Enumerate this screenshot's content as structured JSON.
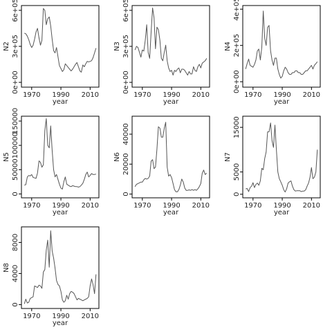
{
  "colors": {
    "line": "#555555",
    "frame": "#000000"
  },
  "chart_data": [
    {
      "type": "line",
      "xlabel": "year",
      "ylabel": "N2",
      "xlim": [
        1963,
        2016
      ],
      "ylim": [
        -40000,
        640000
      ],
      "xticks": [
        1970,
        1990,
        2010
      ],
      "xtick_labels": [
        "1970",
        "1990",
        "2010"
      ],
      "yticks": [
        0,
        300000,
        600000
      ],
      "ytick_labels": [
        "0e+00",
        "3e+05",
        "6e+05"
      ],
      "x": [
        1965,
        1966,
        1967,
        1968,
        1969,
        1970,
        1971,
        1972,
        1973,
        1974,
        1975,
        1976,
        1977,
        1978,
        1979,
        1980,
        1981,
        1982,
        1983,
        1984,
        1985,
        1986,
        1987,
        1988,
        1989,
        1990,
        1991,
        1992,
        1993,
        1994,
        1995,
        1996,
        1997,
        1998,
        1999,
        2000,
        2001,
        2002,
        2003,
        2004,
        2005,
        2006,
        2007,
        2008,
        2009,
        2010,
        2011,
        2012,
        2013,
        2014
      ],
      "y": [
        410000,
        405000,
        385000,
        355000,
        315000,
        290000,
        310000,
        360000,
        420000,
        450000,
        370000,
        310000,
        350000,
        615000,
        600000,
        480000,
        530000,
        545000,
        470000,
        360000,
        265000,
        245000,
        290000,
        215000,
        140000,
        115000,
        90000,
        105000,
        155000,
        140000,
        125000,
        110000,
        95000,
        110000,
        130000,
        150000,
        165000,
        130000,
        95000,
        85000,
        145000,
        130000,
        155000,
        175000,
        170000,
        175000,
        180000,
        205000,
        245000,
        285000
      ]
    },
    {
      "type": "line",
      "xlabel": "year",
      "ylabel": "N3",
      "xlim": [
        1963,
        2016
      ],
      "ylim": [
        -40000,
        640000
      ],
      "xticks": [
        1970,
        1990,
        2010
      ],
      "xtick_labels": [
        "1970",
        "1990",
        "2010"
      ],
      "yticks": [
        0,
        300000,
        600000
      ],
      "ytick_labels": [
        "0e+00",
        "3e+05",
        "6e+05"
      ],
      "x": [
        1965,
        1966,
        1967,
        1968,
        1969,
        1970,
        1971,
        1972,
        1973,
        1974,
        1975,
        1976,
        1977,
        1978,
        1979,
        1980,
        1981,
        1982,
        1983,
        1984,
        1985,
        1986,
        1987,
        1988,
        1989,
        1990,
        1991,
        1992,
        1993,
        1994,
        1995,
        1996,
        1997,
        1998,
        1999,
        2000,
        2001,
        2002,
        2003,
        2004,
        2005,
        2006,
        2007,
        2008,
        2009,
        2010,
        2011,
        2012,
        2013,
        2014
      ],
      "y": [
        270000,
        300000,
        290000,
        250000,
        210000,
        270000,
        260000,
        350000,
        480000,
        250000,
        200000,
        420000,
        620000,
        540000,
        280000,
        460000,
        440000,
        350000,
        200000,
        180000,
        250000,
        310000,
        180000,
        120000,
        90000,
        100000,
        60000,
        100000,
        90000,
        110000,
        120000,
        80000,
        110000,
        110000,
        100000,
        80000,
        60000,
        90000,
        70000,
        70000,
        130000,
        100000,
        90000,
        130000,
        150000,
        120000,
        160000,
        170000,
        180000,
        200000
      ]
    },
    {
      "type": "line",
      "xlabel": "year",
      "ylabel": "N4",
      "xlim": [
        1963,
        2016
      ],
      "ylim": [
        -30000,
        420000
      ],
      "xticks": [
        1970,
        1990,
        2010
      ],
      "xtick_labels": [
        "1970",
        "1990",
        "2010"
      ],
      "yticks": [
        0,
        200000,
        400000
      ],
      "ytick_labels": [
        "0e+00",
        "2e+05",
        "4e+05"
      ],
      "x": [
        1965,
        1966,
        1967,
        1968,
        1969,
        1970,
        1971,
        1972,
        1973,
        1974,
        1975,
        1976,
        1977,
        1978,
        1979,
        1980,
        1981,
        1982,
        1983,
        1984,
        1985,
        1986,
        1987,
        1988,
        1989,
        1990,
        1991,
        1992,
        1993,
        1994,
        1995,
        1996,
        1997,
        1998,
        1999,
        2000,
        2001,
        2002,
        2003,
        2004,
        2005,
        2006,
        2007,
        2008,
        2009,
        2010,
        2011,
        2012,
        2013,
        2014
      ],
      "y": [
        70000,
        100000,
        125000,
        90000,
        85000,
        80000,
        95000,
        120000,
        170000,
        180000,
        120000,
        190000,
        390000,
        240000,
        200000,
        300000,
        310000,
        170000,
        120000,
        90000,
        130000,
        130000,
        70000,
        40000,
        20000,
        30000,
        60000,
        80000,
        70000,
        50000,
        40000,
        40000,
        50000,
        50000,
        60000,
        60000,
        50000,
        50000,
        40000,
        40000,
        50000,
        60000,
        60000,
        70000,
        80000,
        90000,
        70000,
        90000,
        100000,
        110000
      ]
    },
    {
      "type": "line",
      "xlabel": "year",
      "ylabel": "N5",
      "xlim": [
        1963,
        2016
      ],
      "ylim": [
        -8000,
        160000
      ],
      "xticks": [
        1970,
        1990,
        2010
      ],
      "xtick_labels": [
        "1970",
        "1990",
        "2010"
      ],
      "yticks": [
        0,
        50000,
        100000,
        150000
      ],
      "ytick_labels": [
        "0",
        "50000",
        "100000",
        "150000"
      ],
      "x": [
        1965,
        1966,
        1967,
        1968,
        1969,
        1970,
        1971,
        1972,
        1973,
        1974,
        1975,
        1976,
        1977,
        1978,
        1979,
        1980,
        1981,
        1982,
        1983,
        1984,
        1985,
        1986,
        1987,
        1988,
        1989,
        1990,
        1991,
        1992,
        1993,
        1994,
        1995,
        1996,
        1997,
        1998,
        1999,
        2000,
        2001,
        2002,
        2003,
        2004,
        2005,
        2006,
        2007,
        2008,
        2009,
        2010,
        2011,
        2012,
        2013,
        2014
      ],
      "y": [
        18000,
        19000,
        35000,
        38000,
        37000,
        40000,
        34000,
        33000,
        32000,
        43000,
        68000,
        65000,
        55000,
        60000,
        130000,
        155000,
        100000,
        95000,
        140000,
        90000,
        50000,
        35000,
        40000,
        30000,
        20000,
        12000,
        10000,
        25000,
        35000,
        20000,
        18000,
        16000,
        15000,
        17000,
        16000,
        15000,
        15000,
        14000,
        15000,
        18000,
        22000,
        30000,
        40000,
        45000,
        35000,
        38000,
        42000,
        40000,
        40000,
        41000
      ]
    },
    {
      "type": "line",
      "xlabel": "year",
      "ylabel": "N6",
      "xlim": [
        1963,
        2016
      ],
      "ylim": [
        -2500,
        52000
      ],
      "xticks": [
        1970,
        1990,
        2010
      ],
      "xtick_labels": [
        "1970",
        "1990",
        "2010"
      ],
      "yticks": [
        0,
        20000,
        40000
      ],
      "ytick_labels": [
        "0",
        "20000",
        "40000"
      ],
      "x": [
        1965,
        1966,
        1967,
        1968,
        1969,
        1970,
        1971,
        1972,
        1973,
        1974,
        1975,
        1976,
        1977,
        1978,
        1979,
        1980,
        1981,
        1982,
        1983,
        1984,
        1985,
        1986,
        1987,
        1988,
        1989,
        1990,
        1991,
        1992,
        1993,
        1994,
        1995,
        1996,
        1997,
        1998,
        1999,
        2000,
        2001,
        2002,
        2003,
        2004,
        2005,
        2006,
        2007,
        2008,
        2009,
        2010,
        2011,
        2012,
        2013,
        2014
      ],
      "y": [
        5000,
        6500,
        7000,
        7500,
        8000,
        8000,
        9500,
        10500,
        10000,
        10500,
        12000,
        22000,
        23000,
        17000,
        18000,
        30000,
        45000,
        44000,
        38000,
        38000,
        44000,
        48000,
        18000,
        12000,
        13000,
        11000,
        7000,
        3000,
        1500,
        1500,
        3000,
        6000,
        10000,
        8000,
        4000,
        2500,
        2500,
        2800,
        2500,
        3000,
        2500,
        3000,
        2500,
        3500,
        5000,
        7000,
        14000,
        16000,
        13000,
        14000
      ]
    },
    {
      "type": "line",
      "xlabel": "year",
      "ylabel": "N7",
      "xlim": [
        1963,
        2016
      ],
      "ylim": [
        -800,
        17500
      ],
      "xticks": [
        1970,
        1990,
        2010
      ],
      "xtick_labels": [
        "1970",
        "1990",
        "2010"
      ],
      "yticks": [
        0,
        5000,
        15000
      ],
      "ytick_labels": [
        "0",
        "5000",
        "15000"
      ],
      "x": [
        1965,
        1966,
        1967,
        1968,
        1969,
        1970,
        1971,
        1972,
        1973,
        1974,
        1975,
        1976,
        1977,
        1978,
        1979,
        1980,
        1981,
        1982,
        1983,
        1984,
        1985,
        1986,
        1987,
        1988,
        1989,
        1990,
        1991,
        1992,
        1993,
        1994,
        1995,
        1996,
        1997,
        1998,
        1999,
        2000,
        2001,
        2002,
        2003,
        2004,
        2005,
        2006,
        2007,
        2008,
        2009,
        2010,
        2011,
        2012,
        2013,
        2014
      ],
      "y": [
        1200,
        1300,
        600,
        1500,
        1800,
        2600,
        1500,
        2200,
        2500,
        2000,
        3000,
        5800,
        5500,
        8000,
        9500,
        14000,
        14000,
        16000,
        12000,
        10500,
        15500,
        10000,
        5000,
        3500,
        2800,
        2000,
        1000,
        500,
        1200,
        2500,
        2800,
        3000,
        1800,
        1000,
        700,
        800,
        800,
        800,
        600,
        700,
        700,
        1000,
        1800,
        2500,
        3800,
        6000,
        3500,
        3800,
        5000,
        10000
      ]
    },
    {
      "type": "line",
      "xlabel": "year",
      "ylabel": "N8",
      "xlim": [
        1963,
        2016
      ],
      "ylim": [
        -500,
        10000
      ],
      "xticks": [
        1970,
        1990,
        2010
      ],
      "xtick_labels": [
        "1970",
        "1990",
        "2010"
      ],
      "yticks": [
        0,
        4000,
        8000
      ],
      "ytick_labels": [
        "0",
        "4000",
        "8000"
      ],
      "x": [
        1965,
        1966,
        1967,
        1968,
        1969,
        1970,
        1971,
        1972,
        1973,
        1974,
        1975,
        1976,
        1977,
        1978,
        1979,
        1980,
        1981,
        1982,
        1983,
        1984,
        1985,
        1986,
        1987,
        1988,
        1989,
        1990,
        1991,
        1992,
        1993,
        1994,
        1995,
        1996,
        1997,
        1998,
        1999,
        2000,
        2001,
        2002,
        2003,
        2004,
        2005,
        2006,
        2007,
        2008,
        2009,
        2010,
        2011,
        2012,
        2013,
        2014
      ],
      "y": [
        100,
        700,
        200,
        300,
        800,
        900,
        1000,
        2400,
        2300,
        2200,
        2500,
        2400,
        2100,
        4200,
        4500,
        7000,
        8300,
        4800,
        9500,
        6900,
        6000,
        4700,
        3100,
        2600,
        2400,
        1700,
        600,
        300,
        500,
        1200,
        700,
        1400,
        1700,
        1600,
        1400,
        1000,
        600,
        800,
        700,
        600,
        500,
        600,
        700,
        800,
        1000,
        2400,
        3300,
        2600,
        1400,
        3900
      ]
    }
  ]
}
